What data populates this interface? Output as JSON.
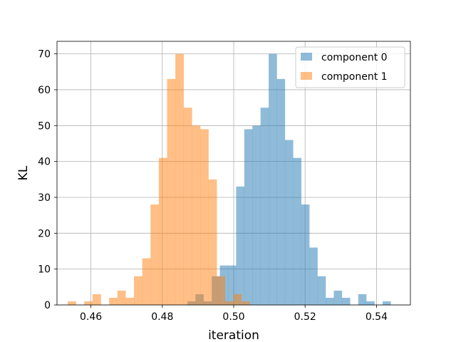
{
  "chart_data": {
    "type": "histogram",
    "title": "",
    "xlabel": "iteration",
    "ylabel": "KL",
    "xlim": [
      0.4505,
      0.5495
    ],
    "ylim": [
      0,
      73.5
    ],
    "xticks": [
      0.46,
      0.48,
      0.5,
      0.52,
      0.54
    ],
    "xtick_labels": [
      "0.46",
      "0.48",
      "0.50",
      "0.52",
      "0.54"
    ],
    "yticks": [
      0,
      10,
      20,
      30,
      40,
      50,
      60,
      70
    ],
    "ytick_labels": [
      "0",
      "10",
      "20",
      "30",
      "40",
      "50",
      "60",
      "70"
    ],
    "grid": true,
    "legend_position": "top-right",
    "series": [
      {
        "name": "component 0",
        "color": "#1f77b4",
        "opacity": 0.5,
        "bin_start": 0.487,
        "bin_width": 0.00228,
        "counts": [
          1,
          3,
          1,
          8,
          11,
          11,
          33,
          49,
          50,
          55,
          70,
          63,
          46,
          41,
          28,
          16,
          8,
          2,
          4,
          2,
          0,
          3,
          1,
          0,
          1
        ]
      },
      {
        "name": "component 1",
        "color": "#ff7f0e",
        "opacity": 0.5,
        "bin_start": 0.4535,
        "bin_width": 0.00232,
        "counts": [
          1,
          0,
          1,
          3,
          0,
          2,
          4,
          2,
          8,
          13,
          28,
          41,
          63,
          70,
          55,
          50,
          49,
          35,
          8,
          1,
          3,
          1
        ]
      }
    ]
  }
}
